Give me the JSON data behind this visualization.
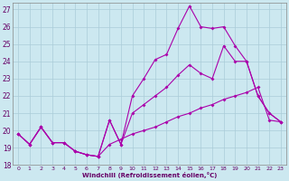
{
  "xlabel": "Windchill (Refroidissement éolien,°C)",
  "background_color": "#cce8f0",
  "grid_color": "#aaccd8",
  "line_color": "#aa00aa",
  "xlim": [
    -0.5,
    23.5
  ],
  "ylim": [
    18,
    27.4
  ],
  "yticks": [
    18,
    19,
    20,
    21,
    22,
    23,
    24,
    25,
    26,
    27
  ],
  "xticks": [
    0,
    1,
    2,
    3,
    4,
    5,
    6,
    7,
    8,
    9,
    10,
    11,
    12,
    13,
    14,
    15,
    16,
    17,
    18,
    19,
    20,
    21,
    22,
    23
  ],
  "series": [
    {
      "x": [
        0,
        1,
        2,
        3,
        4,
        5,
        6,
        7,
        8,
        9,
        10,
        11,
        12,
        13,
        14,
        15,
        16,
        17,
        18,
        19,
        20,
        21,
        22,
        23
      ],
      "y": [
        19.8,
        19.2,
        20.2,
        19.3,
        19.3,
        18.8,
        18.6,
        18.5,
        19.2,
        19.5,
        19.8,
        20.0,
        20.2,
        20.5,
        20.8,
        21.0,
        21.3,
        21.5,
        21.8,
        22.0,
        22.2,
        22.5,
        20.6,
        20.5
      ]
    },
    {
      "x": [
        0,
        1,
        2,
        3,
        4,
        5,
        6,
        7,
        8,
        9,
        10,
        11,
        12,
        13,
        14,
        15,
        16,
        17,
        18,
        19,
        20,
        21,
        22,
        23
      ],
      "y": [
        19.8,
        19.2,
        20.2,
        19.3,
        19.3,
        18.8,
        18.6,
        18.5,
        20.6,
        19.2,
        21.0,
        21.5,
        22.0,
        22.5,
        23.2,
        23.8,
        23.3,
        23.0,
        24.9,
        24.0,
        24.0,
        22.0,
        21.0,
        20.5
      ]
    },
    {
      "x": [
        0,
        1,
        2,
        3,
        4,
        5,
        6,
        7,
        8,
        9,
        10,
        11,
        12,
        13,
        14,
        15,
        16,
        17,
        18,
        19,
        20,
        21,
        22,
        23
      ],
      "y": [
        19.8,
        19.2,
        20.2,
        19.3,
        19.3,
        18.8,
        18.6,
        18.5,
        20.6,
        19.2,
        22.0,
        23.0,
        24.1,
        24.4,
        25.9,
        27.2,
        26.0,
        25.9,
        26.0,
        24.9,
        24.0,
        22.0,
        21.0,
        20.5
      ]
    }
  ]
}
